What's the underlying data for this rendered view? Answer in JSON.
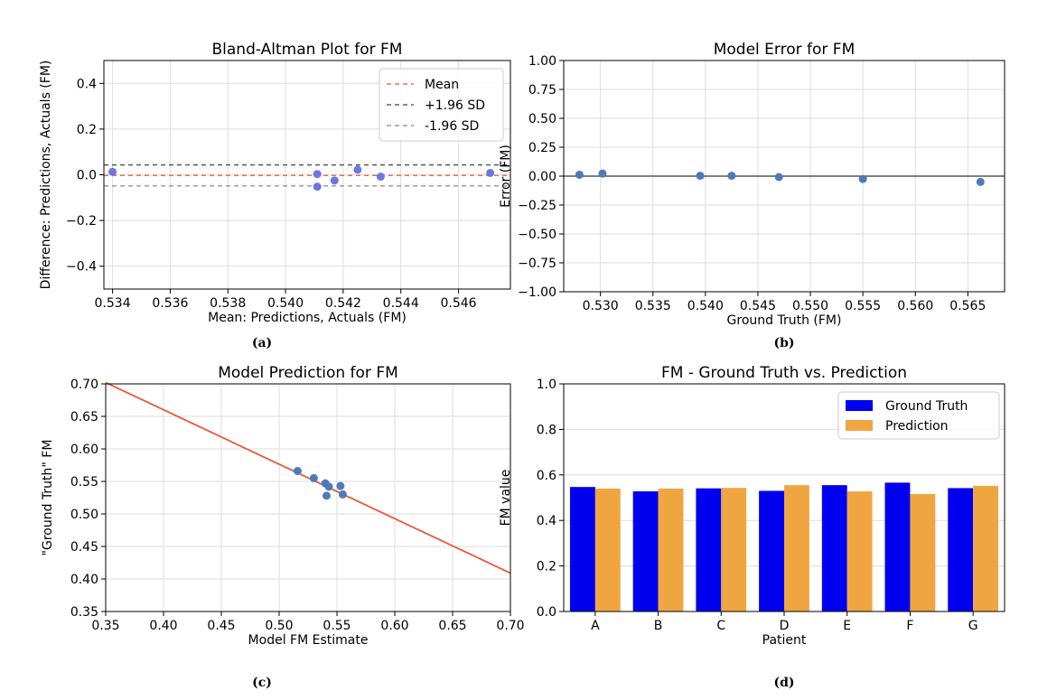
{
  "colors": {
    "point_blue": "#4f79b8",
    "point_purple": "#6f76e0",
    "red": "#e8593c",
    "bar_blue": "#0000ee",
    "bar_orange": "#f0a640",
    "black_dash": "#444444",
    "gray_dash": "#888888",
    "grid": "#dddddd"
  },
  "chart_data": [
    {
      "type": "scatter",
      "title": "Bland-Altman Plot for FM",
      "xlabel": "Mean: Predictions, Actuals (FM)",
      "ylabel": "Difference: Predictions, Actuals (FM)",
      "caption": "(a)",
      "xlim": [
        0.5337,
        0.5478
      ],
      "ylim": [
        -0.5,
        0.5
      ],
      "xticks": [
        0.534,
        0.536,
        0.538,
        0.54,
        0.542,
        0.544,
        0.546
      ],
      "xtick_labels": [
        "0.534",
        "0.536",
        "0.538",
        "0.540",
        "0.542",
        "0.544",
        "0.546"
      ],
      "yticks": [
        -0.4,
        -0.2,
        0.0,
        0.2,
        0.4
      ],
      "ytick_labels": [
        "−0.4",
        "−0.2",
        "0.0",
        "0.2",
        "0.4"
      ],
      "grid": true,
      "legend_position": "top-right",
      "points": [
        {
          "x": 0.534,
          "y": 0.013
        },
        {
          "x": 0.5411,
          "y": 0.003
        },
        {
          "x": 0.5411,
          "y": -0.052
        },
        {
          "x": 0.5417,
          "y": -0.025
        },
        {
          "x": 0.5425,
          "y": 0.022
        },
        {
          "x": 0.5433,
          "y": -0.008
        },
        {
          "x": 0.5471,
          "y": 0.008
        }
      ],
      "reference_lines": [
        {
          "name": "Mean",
          "y": -0.003,
          "style": "red"
        },
        {
          "name": "+1.96 SD",
          "y": 0.043,
          "style": "black"
        },
        {
          "name": "-1.96 SD",
          "y": -0.049,
          "style": "gray"
        }
      ]
    },
    {
      "type": "scatter",
      "title": "Model Error for FM",
      "xlabel": "Ground Truth (FM)",
      "ylabel": "Error (FM)",
      "caption": "(b)",
      "xlim": [
        0.5265,
        0.5685
      ],
      "ylim": [
        -1.0,
        1.0
      ],
      "xticks": [
        0.53,
        0.535,
        0.54,
        0.545,
        0.55,
        0.555,
        0.56,
        0.565
      ],
      "xtick_labels": [
        "0.530",
        "0.535",
        "0.540",
        "0.545",
        "0.550",
        "0.555",
        "0.560",
        "0.565"
      ],
      "yticks": [
        -1.0,
        -0.75,
        -0.5,
        -0.25,
        0.0,
        0.25,
        0.5,
        0.75,
        1.0
      ],
      "ytick_labels": [
        "−1.00",
        "−0.75",
        "−0.50",
        "−0.25",
        "0.00",
        "0.25",
        "0.50",
        "0.75",
        "1.00"
      ],
      "grid": true,
      "zero_line": 0.0,
      "points": [
        {
          "x": 0.528,
          "y": 0.012
        },
        {
          "x": 0.5302,
          "y": 0.022
        },
        {
          "x": 0.5395,
          "y": 0.003
        },
        {
          "x": 0.5425,
          "y": 0.003
        },
        {
          "x": 0.547,
          "y": -0.008
        },
        {
          "x": 0.555,
          "y": -0.025
        },
        {
          "x": 0.5662,
          "y": -0.05
        }
      ]
    },
    {
      "type": "scatter",
      "title": "Model Prediction for FM",
      "xlabel": "Model FM Estimate",
      "ylabel": "\"Ground Truth\" FM",
      "caption": "(c)",
      "xlim": [
        0.35,
        0.7
      ],
      "ylim": [
        0.35,
        0.7
      ],
      "xticks": [
        0.35,
        0.4,
        0.45,
        0.5,
        0.55,
        0.6,
        0.65,
        0.7
      ],
      "xtick_labels": [
        "0.35",
        "0.40",
        "0.45",
        "0.50",
        "0.55",
        "0.60",
        "0.65",
        "0.70"
      ],
      "yticks": [
        0.35,
        0.4,
        0.45,
        0.5,
        0.55,
        0.6,
        0.65,
        0.7
      ],
      "ytick_labels": [
        "0.35",
        "0.40",
        "0.45",
        "0.50",
        "0.55",
        "0.60",
        "0.65",
        "0.70"
      ],
      "grid": true,
      "fit_line": {
        "x1": 0.35,
        "y1": 0.702,
        "x2": 0.7,
        "y2": 0.409
      },
      "points": [
        {
          "x": 0.516,
          "y": 0.566
        },
        {
          "x": 0.53,
          "y": 0.555
        },
        {
          "x": 0.54,
          "y": 0.547
        },
        {
          "x": 0.543,
          "y": 0.542
        },
        {
          "x": 0.541,
          "y": 0.528
        },
        {
          "x": 0.553,
          "y": 0.543
        },
        {
          "x": 0.555,
          "y": 0.53
        }
      ]
    },
    {
      "type": "bar",
      "title": "FM - Ground Truth vs. Prediction",
      "xlabel": "Patient",
      "ylabel": "FM value",
      "caption": "(d)",
      "ylim": [
        0.0,
        1.0
      ],
      "yticks": [
        0.0,
        0.2,
        0.4,
        0.6,
        0.8,
        1.0
      ],
      "ytick_labels": [
        "0.0",
        "0.2",
        "0.4",
        "0.6",
        "0.8",
        "1.0"
      ],
      "grid": true,
      "legend_position": "top-right",
      "categories": [
        "A",
        "B",
        "C",
        "D",
        "E",
        "F",
        "G"
      ],
      "series": [
        {
          "name": "Ground Truth",
          "values": [
            0.547,
            0.528,
            0.541,
            0.53,
            0.555,
            0.566,
            0.542
          ]
        },
        {
          "name": "Prediction",
          "values": [
            0.54,
            0.54,
            0.543,
            0.555,
            0.528,
            0.516,
            0.552
          ]
        }
      ]
    }
  ]
}
